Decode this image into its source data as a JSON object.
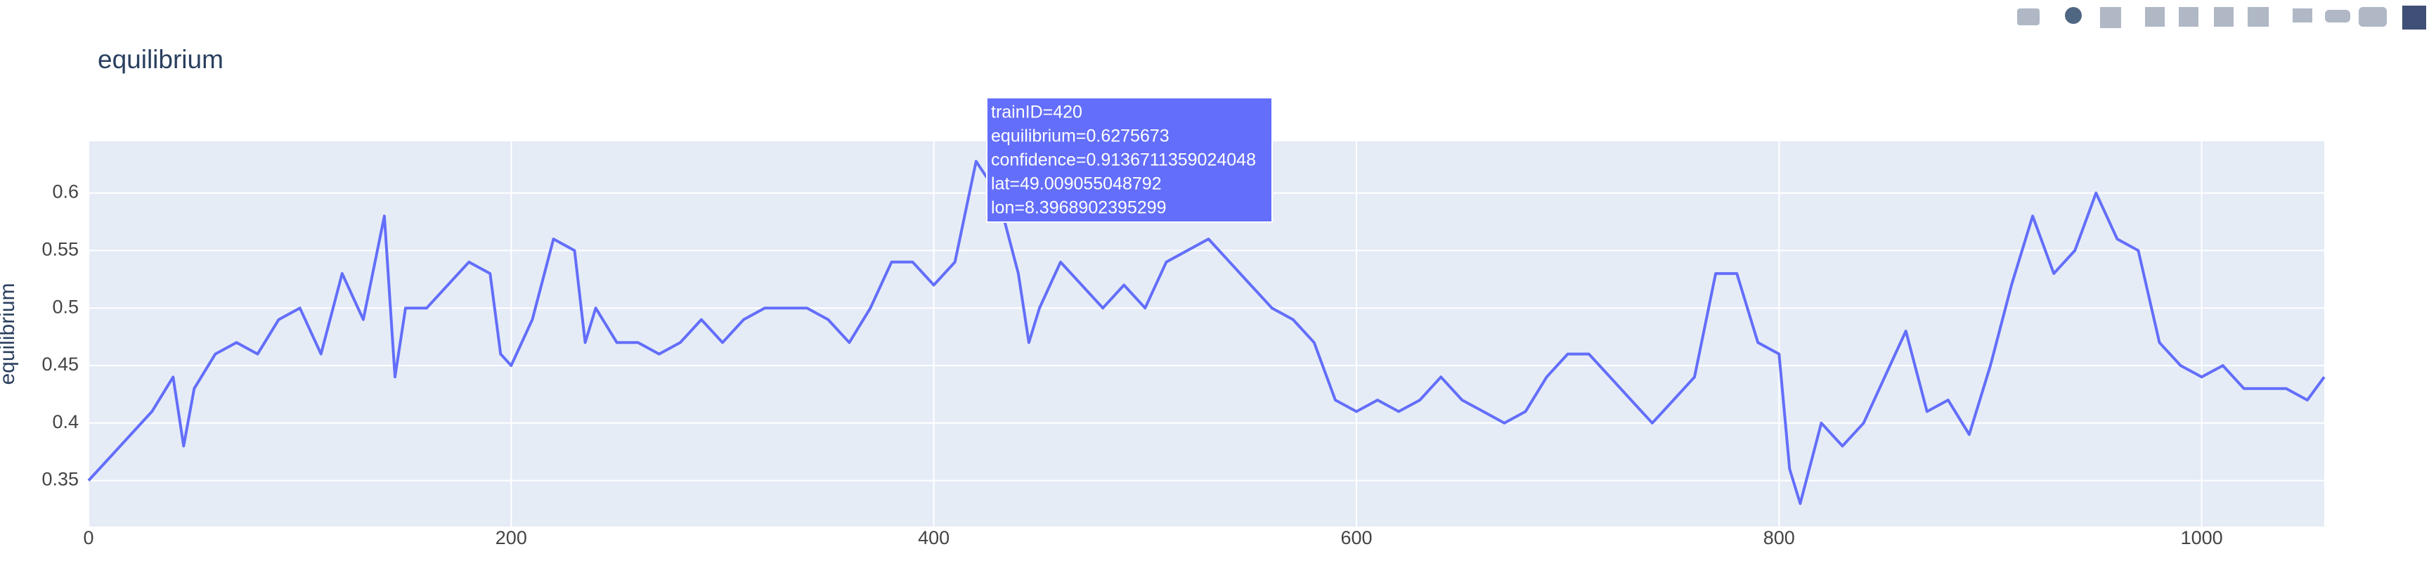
{
  "chart_data": {
    "type": "line",
    "title": "equilibrium",
    "y_label": "equilibrium",
    "x": [
      0,
      10,
      20,
      30,
      40,
      45,
      50,
      60,
      70,
      80,
      90,
      100,
      110,
      120,
      130,
      140,
      145,
      150,
      160,
      170,
      180,
      190,
      195,
      200,
      210,
      220,
      230,
      235,
      240,
      250,
      260,
      270,
      280,
      290,
      300,
      310,
      320,
      330,
      340,
      350,
      360,
      370,
      380,
      390,
      400,
      410,
      420,
      430,
      440,
      445,
      450,
      460,
      470,
      480,
      490,
      500,
      510,
      520,
      530,
      540,
      550,
      560,
      570,
      580,
      590,
      600,
      610,
      620,
      630,
      640,
      650,
      660,
      670,
      680,
      690,
      700,
      710,
      720,
      730,
      740,
      750,
      760,
      770,
      780,
      790,
      800,
      805,
      810,
      820,
      830,
      840,
      850,
      860,
      870,
      880,
      890,
      900,
      910,
      920,
      930,
      940,
      950,
      960,
      970,
      980,
      990,
      1000,
      1010,
      1020,
      1030,
      1040,
      1050,
      1058
    ],
    "values": [
      0.35,
      0.37,
      0.39,
      0.41,
      0.44,
      0.38,
      0.43,
      0.46,
      0.47,
      0.46,
      0.49,
      0.5,
      0.46,
      0.53,
      0.49,
      0.58,
      0.44,
      0.5,
      0.5,
      0.52,
      0.54,
      0.53,
      0.46,
      0.45,
      0.49,
      0.56,
      0.55,
      0.47,
      0.5,
      0.47,
      0.47,
      0.46,
      0.47,
      0.49,
      0.47,
      0.49,
      0.5,
      0.5,
      0.5,
      0.49,
      0.47,
      0.5,
      0.54,
      0.54,
      0.52,
      0.54,
      0.6275673,
      0.6,
      0.53,
      0.47,
      0.5,
      0.54,
      0.52,
      0.5,
      0.52,
      0.5,
      0.54,
      0.55,
      0.56,
      0.54,
      0.52,
      0.5,
      0.49,
      0.47,
      0.42,
      0.41,
      0.42,
      0.41,
      0.42,
      0.44,
      0.42,
      0.41,
      0.4,
      0.41,
      0.44,
      0.46,
      0.46,
      0.44,
      0.42,
      0.4,
      0.42,
      0.44,
      0.53,
      0.53,
      0.47,
      0.46,
      0.36,
      0.33,
      0.4,
      0.38,
      0.4,
      0.44,
      0.48,
      0.41,
      0.42,
      0.39,
      0.45,
      0.52,
      0.58,
      0.53,
      0.55,
      0.6,
      0.56,
      0.55,
      0.47,
      0.45,
      0.44,
      0.45,
      0.43,
      0.43,
      0.43,
      0.42,
      0.44
    ],
    "color": "#636efa",
    "xlim": [
      0,
      1058
    ],
    "xticks": [
      0,
      200,
      400,
      600,
      800,
      1000
    ],
    "ylim": [
      0.31,
      0.645
    ],
    "yticks": [
      0.35,
      0.4,
      0.45,
      0.5,
      0.55,
      0.6
    ],
    "grid": true,
    "hover": [
      "trainID=420",
      "equilibrium=0.6275673",
      "confidence=0.9136711359024048",
      "lat=49.009055048792",
      "lon=8.3968902395299"
    ]
  }
}
